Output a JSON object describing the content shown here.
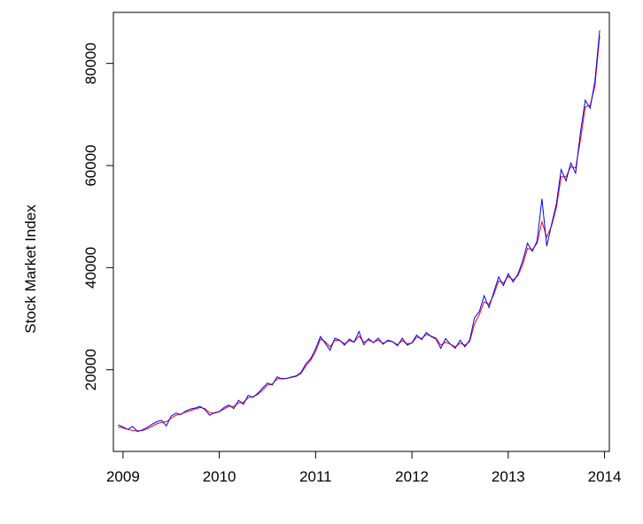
{
  "chart_data": {
    "type": "line",
    "title": "",
    "xlabel": "",
    "ylabel": "Stock Market Index",
    "xlim": [
      2008.9,
      2014.05
    ],
    "ylim": [
      4000,
      90000
    ],
    "x_ticks": [
      {
        "value": 2009,
        "label": "2009"
      },
      {
        "value": 2010,
        "label": "2010"
      },
      {
        "value": 2011,
        "label": "2011"
      },
      {
        "value": 2012,
        "label": "2012"
      },
      {
        "value": 2013,
        "label": "2013"
      },
      {
        "value": 2014,
        "label": "2014"
      }
    ],
    "y_ticks": [
      {
        "value": 20000,
        "label": "20000"
      },
      {
        "value": 40000,
        "label": "40000"
      },
      {
        "value": 60000,
        "label": "60000"
      },
      {
        "value": 80000,
        "label": "80000"
      }
    ],
    "grid": false,
    "legend": "none",
    "series": [
      {
        "color": "#0000ff",
        "x": [
          2008.95,
          2009.0,
          2009.05,
          2009.1,
          2009.15,
          2009.2,
          2009.25,
          2009.3,
          2009.35,
          2009.4,
          2009.45,
          2009.5,
          2009.55,
          2009.6,
          2009.65,
          2009.7,
          2009.75,
          2009.8,
          2009.85,
          2009.9,
          2009.95,
          2010.0,
          2010.05,
          2010.1,
          2010.15,
          2010.2,
          2010.25,
          2010.3,
          2010.35,
          2010.4,
          2010.45,
          2010.5,
          2010.55,
          2010.6,
          2010.65,
          2010.7,
          2010.75,
          2010.8,
          2010.85,
          2010.9,
          2010.95,
          2011.0,
          2011.05,
          2011.1,
          2011.15,
          2011.2,
          2011.25,
          2011.3,
          2011.35,
          2011.4,
          2011.45,
          2011.5,
          2011.55,
          2011.6,
          2011.65,
          2011.7,
          2011.75,
          2011.8,
          2011.85,
          2011.9,
          2011.95,
          2012.0,
          2012.05,
          2012.1,
          2012.15,
          2012.2,
          2012.25,
          2012.3,
          2012.35,
          2012.4,
          2012.45,
          2012.5,
          2012.55,
          2012.6,
          2012.65,
          2012.7,
          2012.75,
          2012.8,
          2012.85,
          2012.9,
          2012.95,
          2013.0,
          2013.05,
          2013.1,
          2013.15,
          2013.2,
          2013.25,
          2013.3,
          2013.35,
          2013.4,
          2013.45,
          2013.5,
          2013.55,
          2013.6,
          2013.65,
          2013.7,
          2013.75,
          2013.8,
          2013.85,
          2013.9,
          2013.95
        ],
        "values": [
          9200,
          8800,
          8300,
          8900,
          7900,
          8200,
          8700,
          9300,
          9800,
          10100,
          9000,
          10900,
          11500,
          11200,
          11900,
          12300,
          12500,
          12800,
          12200,
          11100,
          11600,
          11800,
          12600,
          13100,
          12400,
          14000,
          13200,
          15000,
          14600,
          15400,
          16400,
          17400,
          17000,
          18600,
          18200,
          18300,
          18600,
          18800,
          19500,
          21200,
          22200,
          24100,
          26500,
          25200,
          23800,
          26200,
          25800,
          24800,
          26000,
          25400,
          27500,
          24900,
          26100,
          25300,
          26200,
          25000,
          25800,
          25500,
          24700,
          26200,
          24800,
          25300,
          26800,
          25900,
          27300,
          26500,
          26000,
          24200,
          26100,
          25000,
          24200,
          25800,
          24500,
          25800,
          30200,
          31400,
          34500,
          32200,
          35200,
          38200,
          36500,
          38800,
          37200,
          38700,
          41300,
          44800,
          43200,
          45200,
          53500,
          44200,
          48500,
          52500,
          59200,
          57000,
          60500,
          58500,
          66500,
          72800,
          71200,
          76500,
          86500
        ]
      },
      {
        "color": "#ff0000",
        "x": [
          2008.95,
          2009.0,
          2009.05,
          2009.1,
          2009.15,
          2009.2,
          2009.25,
          2009.3,
          2009.35,
          2009.4,
          2009.45,
          2009.5,
          2009.55,
          2009.6,
          2009.65,
          2009.7,
          2009.75,
          2009.8,
          2009.85,
          2009.9,
          2009.95,
          2010.0,
          2010.05,
          2010.1,
          2010.15,
          2010.2,
          2010.25,
          2010.3,
          2010.35,
          2010.4,
          2010.45,
          2010.5,
          2010.55,
          2010.6,
          2010.65,
          2010.7,
          2010.75,
          2010.8,
          2010.85,
          2010.9,
          2010.95,
          2011.0,
          2011.05,
          2011.1,
          2011.15,
          2011.2,
          2011.25,
          2011.3,
          2011.35,
          2011.4,
          2011.45,
          2011.5,
          2011.55,
          2011.6,
          2011.65,
          2011.7,
          2011.75,
          2011.8,
          2011.85,
          2011.9,
          2011.95,
          2012.0,
          2012.05,
          2012.1,
          2012.15,
          2012.2,
          2012.25,
          2012.3,
          2012.35,
          2012.4,
          2012.45,
          2012.5,
          2012.55,
          2012.6,
          2012.65,
          2012.7,
          2012.75,
          2012.8,
          2012.85,
          2012.9,
          2012.95,
          2013.0,
          2013.05,
          2013.1,
          2013.15,
          2013.2,
          2013.25,
          2013.3,
          2013.35,
          2013.4,
          2013.45,
          2013.5,
          2013.55,
          2013.6,
          2013.65,
          2013.7,
          2013.75,
          2013.8,
          2013.85,
          2013.9,
          2013.95
        ],
        "values": [
          8800,
          8600,
          8300,
          8100,
          8000,
          8100,
          8400,
          8900,
          9400,
          9700,
          9800,
          10500,
          11100,
          11300,
          11700,
          12000,
          12300,
          12600,
          12400,
          11600,
          11500,
          11800,
          12300,
          12800,
          12800,
          13500,
          13600,
          14500,
          14700,
          15200,
          16000,
          17000,
          17200,
          18200,
          18300,
          18300,
          18500,
          18700,
          19300,
          20800,
          21900,
          23600,
          26000,
          25500,
          24500,
          25800,
          25700,
          25100,
          25700,
          25400,
          26600,
          25400,
          25800,
          25400,
          25800,
          25200,
          25600,
          25500,
          24900,
          25700,
          25100,
          25200,
          26400,
          26100,
          26900,
          26600,
          26200,
          24800,
          25400,
          25000,
          24500,
          25200,
          24800,
          25500,
          29000,
          30800,
          33300,
          32800,
          34700,
          37400,
          37000,
          38300,
          37600,
          38400,
          40600,
          43800,
          43500,
          44800,
          49000,
          46000,
          48200,
          51800,
          57800,
          57800,
          59800,
          59500,
          65000,
          71500,
          71800,
          75500,
          85500
        ]
      }
    ]
  }
}
